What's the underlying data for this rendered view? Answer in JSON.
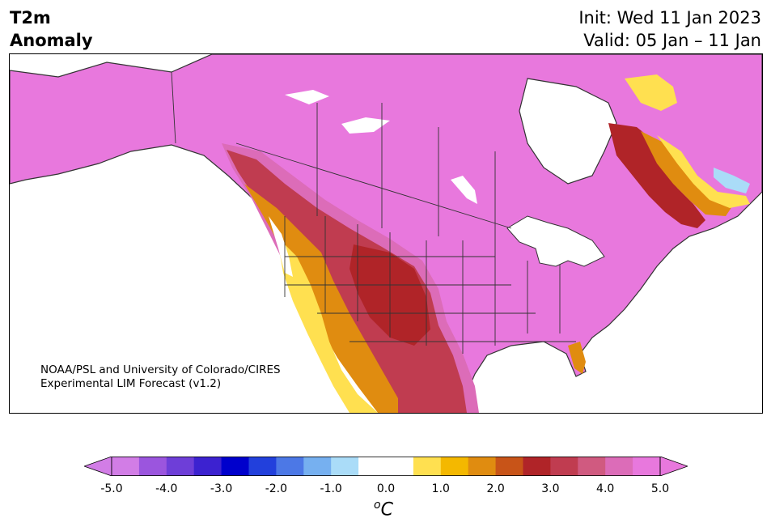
{
  "header": {
    "title_line1": "T2m",
    "title_line2": "Anomaly",
    "init_text": "Init: Wed 11 Jan 2023",
    "valid_text": "Valid: 05 Jan – 11 Jan"
  },
  "map": {
    "region": "North America",
    "credit_line1": "NOAA/PSL and University of Colorado/CIRES",
    "credit_line2": "Experimental LIM Forecast (v1.2)",
    "land_fill": "#e878dd",
    "border_color": "#333333"
  },
  "colorbar": {
    "unit_base": "C",
    "unit_sup": "o",
    "ticks": [
      "-5.0",
      "-4.0",
      "-3.0",
      "-2.0",
      "-1.0",
      "0.0",
      "1.0",
      "2.0",
      "3.0",
      "4.0",
      "5.0"
    ],
    "colors": [
      "#d27de6",
      "#9b55de",
      "#6e3ed8",
      "#3c22d0",
      "#0000cc",
      "#2240dc",
      "#4c78e6",
      "#76b0f0",
      "#aadcf8",
      "#ffffff",
      "#ffffff",
      "#ffe050",
      "#f4b800",
      "#e08c10",
      "#c85418",
      "#b02428",
      "#c03c50",
      "#d05a80",
      "#dc6cb8",
      "#e878dd"
    ],
    "under_color": "#d27de6",
    "over_color": "#e878dd"
  }
}
